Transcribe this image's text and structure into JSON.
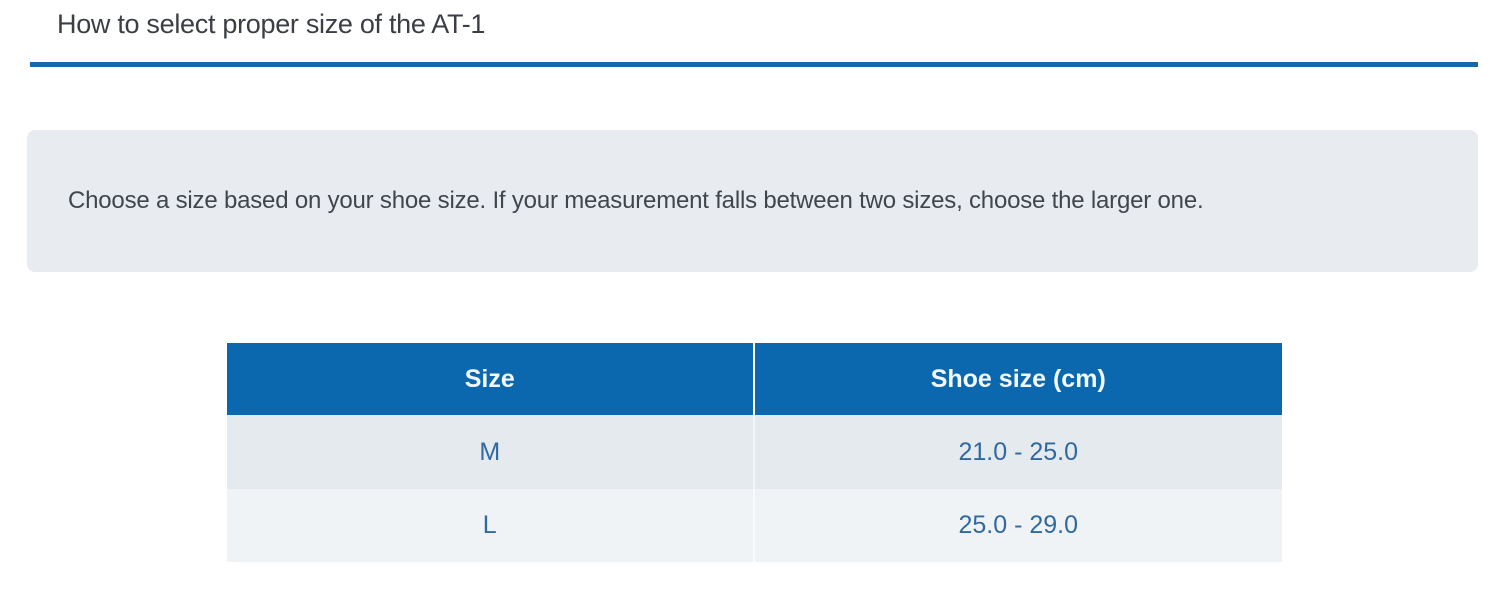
{
  "page": {
    "title": "How to select proper size of the AT-1"
  },
  "notice": {
    "text": "Choose a size based on your shoe size. If your measurement falls between two sizes, choose the larger one."
  },
  "table": {
    "headers": [
      "Size",
      "Shoe size (cm)"
    ],
    "rows": [
      {
        "size": "M",
        "shoe_size_cm": "21.0 - 25.0"
      },
      {
        "size": "L",
        "shoe_size_cm": "25.0 - 29.0"
      }
    ]
  },
  "colors": {
    "accent_blue_header": "#0c68ae",
    "title_rule_blue": "#1a66a7",
    "cell_text_blue": "#31699f",
    "notice_background": "#e8ecf1",
    "row_odd_background": "#e5eaef",
    "row_even_background": "#eff3f6",
    "header_text": "#f3f9fe",
    "title_text": "#3b3f45"
  }
}
